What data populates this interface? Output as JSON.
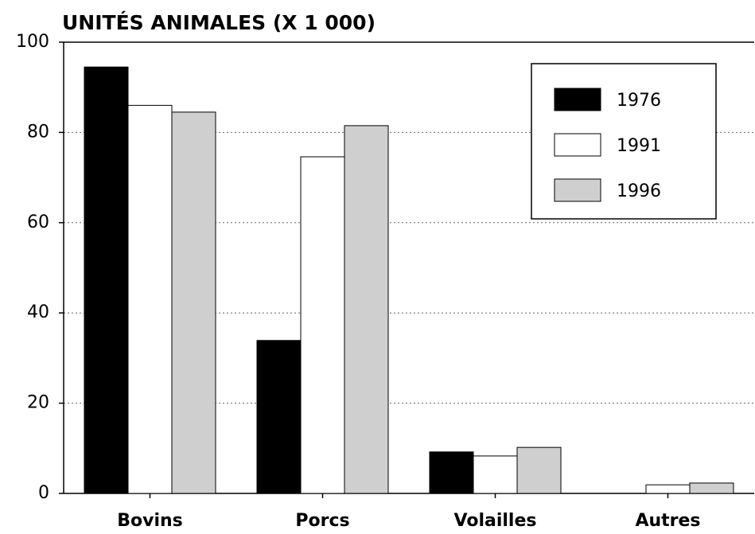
{
  "chart_data": {
    "type": "bar",
    "title": "UNITÉS ANIMALES (X 1 000)",
    "categories": [
      "Bovins",
      "Porcs",
      "Volailles",
      "Autres"
    ],
    "series": [
      {
        "name": "1976",
        "color": "#000000",
        "values": [
          94.5,
          33.9,
          9.2,
          0
        ]
      },
      {
        "name": "1991",
        "color": "#ffffff",
        "values": [
          86,
          74.6,
          8.3,
          1.9
        ]
      },
      {
        "name": "1996",
        "color": "#cfcfcf",
        "values": [
          84.5,
          81.5,
          10.2,
          2.3
        ]
      }
    ],
    "ylim": [
      0,
      100
    ],
    "yticks": [
      0,
      20,
      40,
      60,
      80,
      100
    ],
    "grid": true,
    "legend": "top-right"
  }
}
